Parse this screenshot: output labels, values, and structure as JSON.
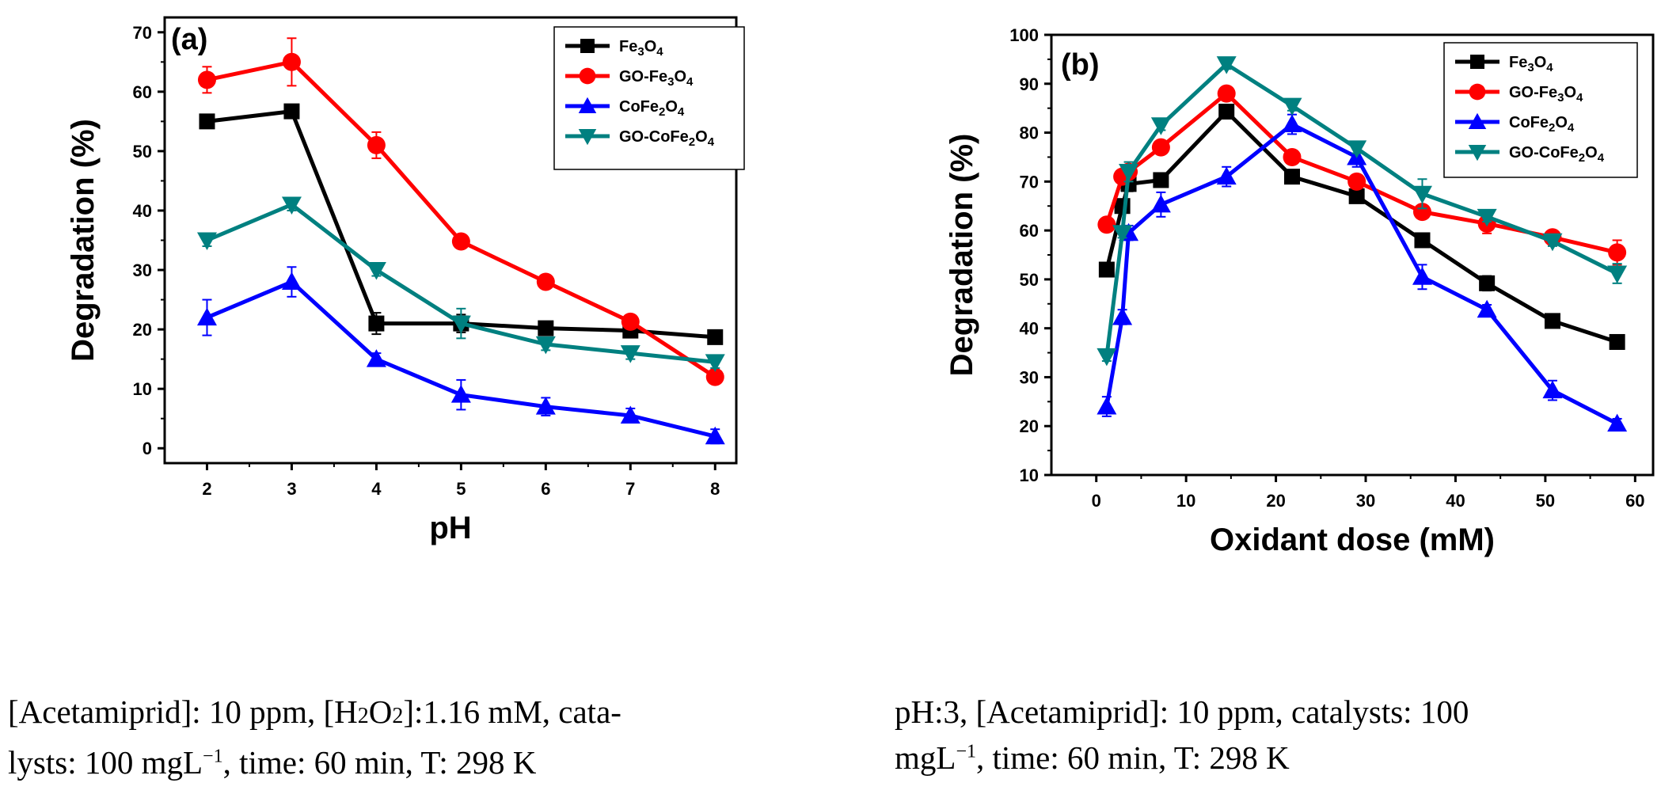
{
  "colors": {
    "Fe3O4": "#000000",
    "GO-Fe3O4": "#ff0000",
    "CoFe2O4": "#0000ff",
    "GO-CoFe2O4": "#008080"
  },
  "legend_entries": [
    {
      "base": "Fe",
      "sub1": "3",
      "mid": "O",
      "sub2": "4",
      "color_key": "Fe3O4",
      "marker": "square"
    },
    {
      "base": "GO-Fe",
      "sub1": "3",
      "mid": "O",
      "sub2": "4",
      "color_key": "GO-Fe3O4",
      "marker": "circle"
    },
    {
      "base": "CoFe",
      "sub1": "2",
      "mid": "O",
      "sub2": "4",
      "color_key": "CoFe2O4",
      "marker": "triangle-up"
    },
    {
      "base": "GO-CoFe",
      "sub1": "2",
      "mid": "O",
      "sub2": "4",
      "color_key": "GO-CoFe2O4",
      "marker": "triangle-down"
    }
  ],
  "chart_data": [
    {
      "type": "line",
      "panel_label": "(a)",
      "xlabel": "pH",
      "ylabel": "Degradation (%)",
      "xlim": [
        1.5,
        8.25
      ],
      "ylim": [
        -2.5,
        72.5
      ],
      "xticks": [
        2,
        3,
        4,
        5,
        6,
        7,
        8
      ],
      "yticks": [
        0,
        10,
        20,
        30,
        40,
        50,
        60,
        70
      ],
      "legend_position": "top-right",
      "series": [
        {
          "name": "Fe3O4",
          "marker": "square",
          "x": [
            2,
            3,
            4,
            5,
            6,
            7,
            8
          ],
          "values": [
            55,
            56.7,
            21,
            21,
            20.2,
            19.8,
            18.7
          ],
          "errors": [
            0.8,
            1.0,
            1.8,
            1.5,
            0.8,
            0.8,
            0.8
          ]
        },
        {
          "name": "GO-Fe3O4",
          "marker": "circle",
          "x": [
            2,
            3,
            4,
            5,
            6,
            7,
            8
          ],
          "values": [
            62,
            65,
            51,
            34.8,
            28,
            21.3,
            12
          ],
          "errors": [
            2.2,
            4,
            2.2,
            0.8,
            0.8,
            0.8,
            0.8
          ]
        },
        {
          "name": "CoFe2O4",
          "marker": "triangle-up",
          "x": [
            2,
            3,
            4,
            5,
            6,
            7,
            8
          ],
          "values": [
            22,
            28,
            15,
            9,
            7,
            5.5,
            2
          ],
          "errors": [
            3,
            2.5,
            1,
            2.5,
            1.5,
            1.2,
            1.2
          ]
        },
        {
          "name": "GO-CoFe2O4",
          "marker": "triangle-down",
          "x": [
            2,
            3,
            4,
            5,
            6,
            7,
            8
          ],
          "values": [
            35,
            41,
            30,
            21,
            17.5,
            16,
            14.5
          ],
          "errors": [
            1,
            1,
            1,
            2.5,
            1,
            1,
            1
          ]
        }
      ]
    },
    {
      "type": "line",
      "panel_label": "(b)",
      "xlabel": "Oxidant dose (mM)",
      "ylabel": "Degradation (%)",
      "xlim": [
        -5,
        62
      ],
      "ylim": [
        10,
        100
      ],
      "xticks": [
        0,
        10,
        20,
        30,
        40,
        50,
        60
      ],
      "yticks": [
        10,
        20,
        30,
        40,
        50,
        60,
        70,
        80,
        90,
        100
      ],
      "legend_position": "top-right",
      "series": [
        {
          "name": "Fe3O4",
          "marker": "square",
          "x": [
            1.16,
            2.9,
            3.6,
            7.2,
            14.5,
            21.8,
            29,
            36.3,
            43.5,
            50.8,
            58
          ],
          "values": [
            52,
            65,
            69.5,
            70.3,
            84.3,
            71,
            67,
            58,
            49.2,
            41.5,
            37.2
          ],
          "errors": [
            1,
            1,
            1.5,
            1,
            1,
            1,
            1,
            1,
            1.5,
            1,
            1
          ]
        },
        {
          "name": "GO-Fe3O4",
          "marker": "circle",
          "x": [
            1.16,
            2.9,
            3.6,
            7.2,
            14.5,
            21.8,
            29,
            36.3,
            43.5,
            50.8,
            58
          ],
          "values": [
            61.2,
            71,
            72,
            77,
            88,
            75,
            70,
            63.8,
            61.4,
            58.6,
            55.5
          ],
          "errors": [
            1,
            1,
            1,
            1,
            1,
            1,
            1,
            1,
            2,
            1,
            2.5
          ]
        },
        {
          "name": "CoFe2O4",
          "marker": "triangle-up",
          "x": [
            1.16,
            2.9,
            3.6,
            7.2,
            14.5,
            21.8,
            29,
            36.3,
            43.5,
            50.8,
            58
          ],
          "values": [
            24,
            42.3,
            59.5,
            65.3,
            71,
            81.7,
            75,
            50.5,
            43.8,
            27.3,
            20.5
          ],
          "errors": [
            2,
            1.5,
            1.5,
            2.5,
            2,
            2,
            2,
            2.5,
            1,
            2,
            1
          ]
        },
        {
          "name": "GO-CoFe2O4",
          "marker": "triangle-down",
          "x": [
            1.16,
            2.9,
            3.6,
            7.2,
            14.5,
            21.8,
            29,
            36.3,
            43.5,
            50.8,
            58
          ],
          "values": [
            34.3,
            59.5,
            72,
            81.5,
            94,
            85.5,
            76.8,
            67.5,
            62.8,
            57.8,
            51.2
          ],
          "errors": [
            1,
            1,
            2,
            1,
            1,
            1,
            1,
            3,
            1,
            1,
            2
          ]
        }
      ]
    }
  ],
  "captions": {
    "a": {
      "line1": [
        "[Acetamiprid]: 10 ppm, [H",
        "2",
        "O",
        "2",
        "]:1.16 mM, cata-"
      ],
      "line2": [
        "lysts: 100 mgL",
        "−1",
        ", time: 60 min, T: 298 K"
      ]
    },
    "b": {
      "line1": "pH:3, [Acetamiprid]: 10 ppm, catalysts: 100",
      "line2": [
        "mgL",
        "−1",
        ", time: 60 min, T: 298 K"
      ]
    }
  }
}
